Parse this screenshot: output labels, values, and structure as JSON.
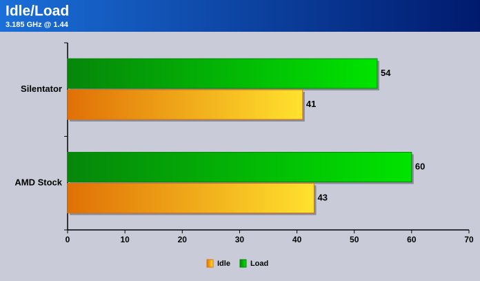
{
  "chart_data": {
    "type": "bar",
    "orientation": "horizontal",
    "title": "Idle/Load",
    "subtitle": "3.185 GHz @ 1.44",
    "categories": [
      "Silentator",
      "AMD Stock"
    ],
    "series": [
      {
        "name": "Idle",
        "color": "#ffe22e",
        "values": [
          41,
          43
        ]
      },
      {
        "name": "Load",
        "color": "#00e400",
        "values": [
          54,
          60
        ]
      }
    ],
    "xlim": [
      0,
      70
    ],
    "xticks": [
      0,
      10,
      20,
      30,
      40,
      50,
      60,
      70
    ],
    "legend": "bottom"
  }
}
